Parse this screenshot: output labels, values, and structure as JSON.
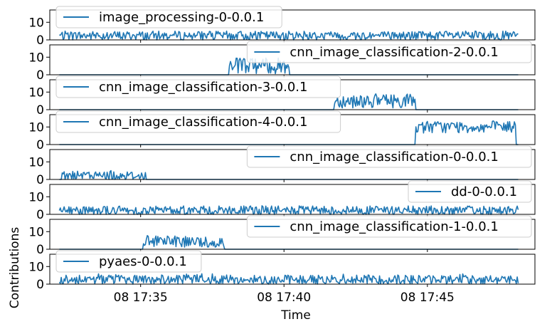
{
  "chart_data": {
    "type": "line",
    "xlabel": "Time",
    "ylabel": "Contributions",
    "x_range": [
      "08 17:31:50",
      "08 17:48:45"
    ],
    "x_ticks": [
      {
        "t": "08 17:35:00",
        "label": "08 17:35"
      },
      {
        "t": "08 17:40:00",
        "label": "08 17:40"
      },
      {
        "t": "08 17:45:00",
        "label": "08 17:45"
      }
    ],
    "ylim": [
      0,
      17
    ],
    "y_ticks": [
      0,
      10
    ],
    "grid": false,
    "line_color": "#1f77b4",
    "panels": [
      {
        "name": "image_processing-0-0.0.1",
        "legend": "upper-left",
        "segments": [
          {
            "start": "08 17:32:10",
            "end": "08 17:48:10",
            "base": 2.4,
            "amp": 2.6,
            "spike": 5
          }
        ]
      },
      {
        "name": "cnn_image_classification-2-0.0.1",
        "legend": "upper-right",
        "segments": [
          {
            "start": "08 17:38:05",
            "end": "08 17:40:10",
            "base": 5.0,
            "amp": 4.5,
            "spike": 10
          }
        ]
      },
      {
        "name": "cnn_image_classification-3-0.0.1",
        "legend": "upper-left",
        "segments": [
          {
            "start": "08 17:41:45",
            "end": "08 17:44:35",
            "base": 5.0,
            "amp": 4.0,
            "spike": 9
          }
        ]
      },
      {
        "name": "cnn_image_classification-4-0.0.1",
        "legend": "upper-left",
        "segments": [
          {
            "start": "08 17:44:35",
            "end": "08 17:48:05",
            "base": 10.0,
            "amp": 3.5,
            "spike": 14
          }
        ]
      },
      {
        "name": "cnn_image_classification-0-0.0.1",
        "legend": "upper-right",
        "segments": [
          {
            "start": "08 17:32:15",
            "end": "08 17:35:10",
            "base": 2.2,
            "amp": 2.5,
            "spike": 5
          }
        ]
      },
      {
        "name": "dd-0-0.0.1",
        "legend": "upper-right",
        "segments": [
          {
            "start": "08 17:32:10",
            "end": "08 17:48:10",
            "base": 2.2,
            "amp": 2.6,
            "spike": 5
          }
        ]
      },
      {
        "name": "cnn_image_classification-1-0.0.1",
        "legend": "upper-right",
        "segments": [
          {
            "start": "08 17:35:05",
            "end": "08 17:37:55",
            "base": 4.0,
            "amp": 3.5,
            "spike": 8
          }
        ]
      },
      {
        "name": "pyaes-0-0.0.1",
        "legend": "upper-left",
        "segments": [
          {
            "start": "08 17:32:10",
            "end": "08 17:48:10",
            "base": 2.6,
            "amp": 2.6,
            "spike": 6
          }
        ]
      }
    ]
  }
}
